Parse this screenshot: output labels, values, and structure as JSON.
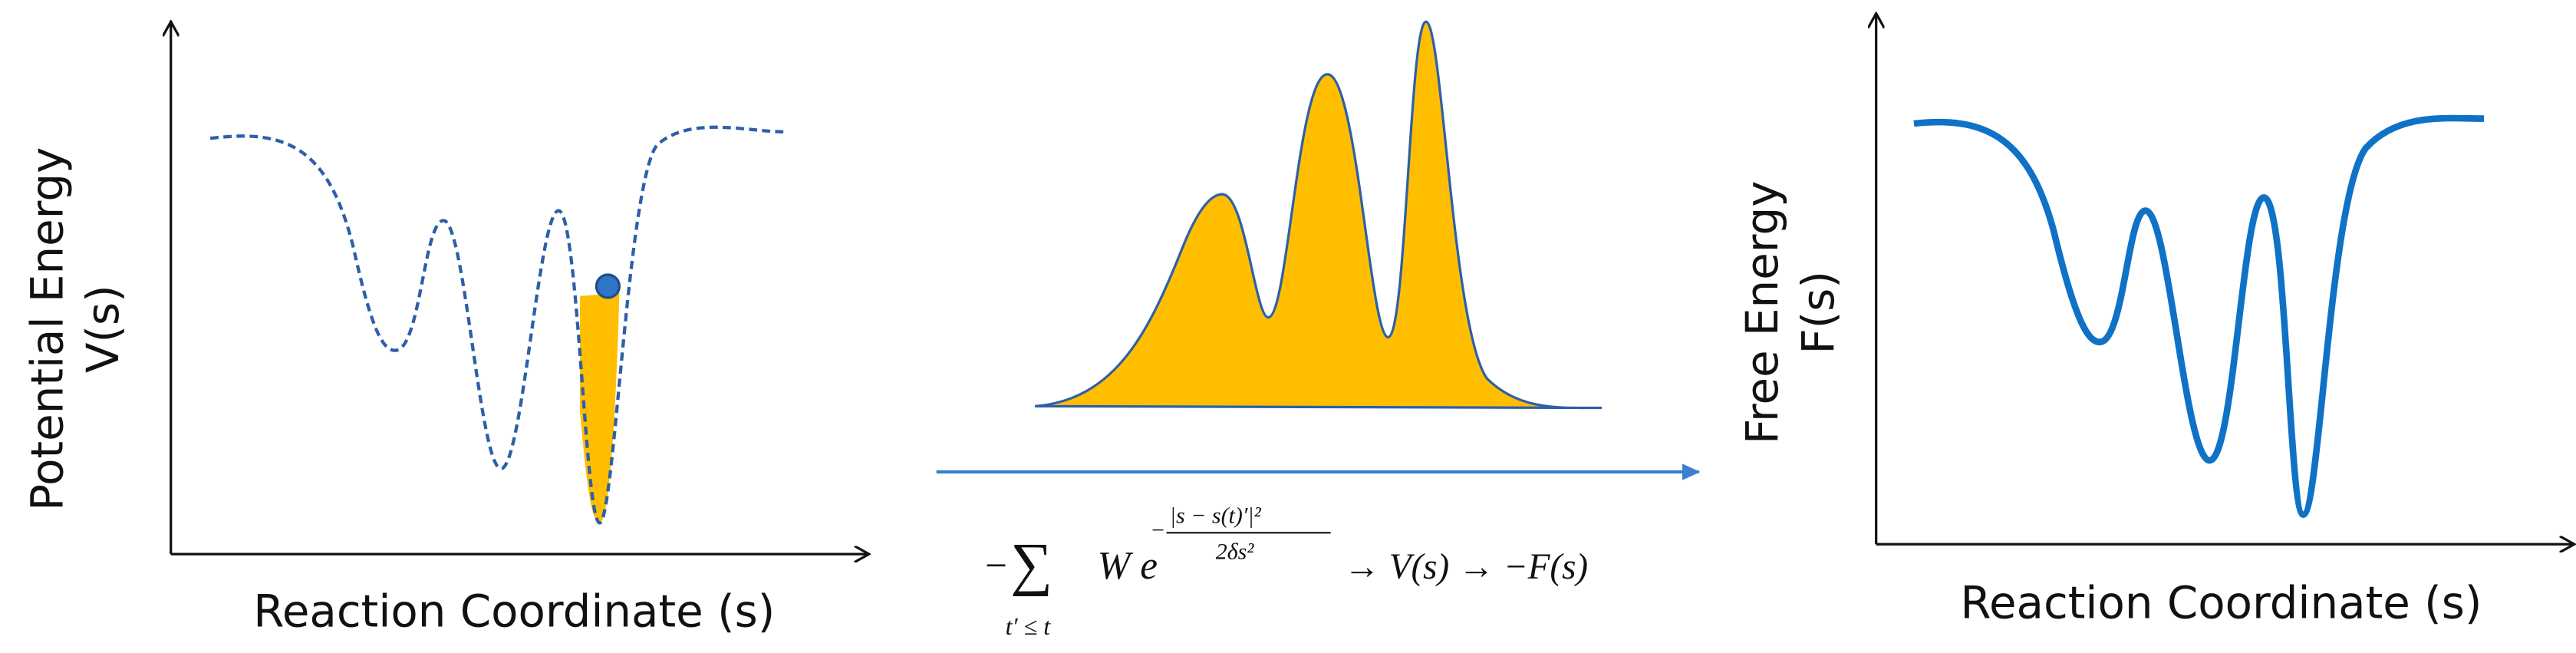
{
  "left_panel": {
    "y_label_line1": "Potential Energy",
    "y_label_line2": "V(s)",
    "x_label": "Reaction Coordinate (s)"
  },
  "formula": {
    "minus": "−",
    "sum": "∑",
    "subscript": "t′ ≤ t",
    "weight": "W e",
    "exp_sign": "−",
    "exp_numerator": "|s − s(t)′|²",
    "exp_denominator": "2δs²",
    "rest": "→  V(s) →  −F(s)"
  },
  "right_panel": {
    "y_label_line1": "Free Energy",
    "y_label_line2": "F(s)",
    "x_label": "Reaction Coordinate (s)"
  }
}
